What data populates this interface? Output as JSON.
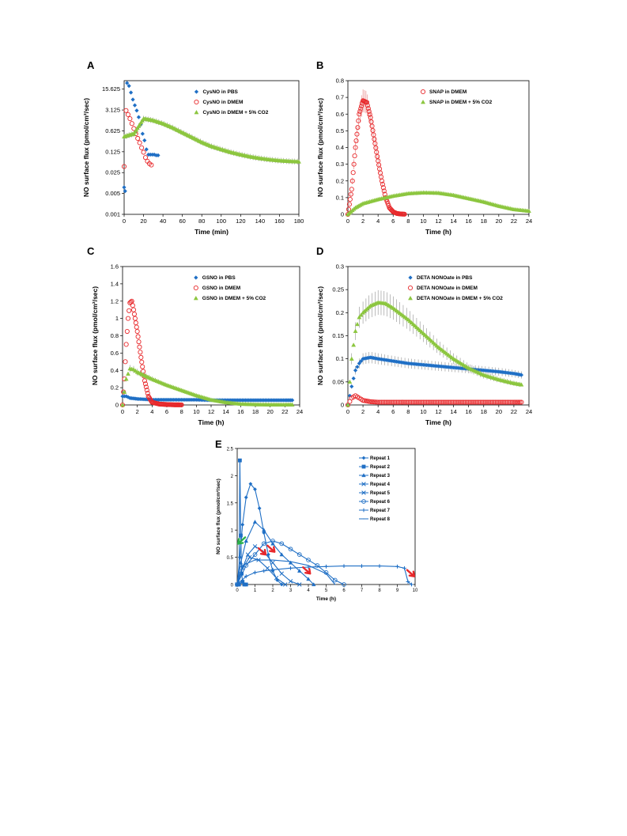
{
  "chart_data": [
    {
      "panel": "A",
      "type": "scatter",
      "xlabel": "Time (min)",
      "ylabel": "NO surface flux (pmol/cm²/sec)",
      "xlim": [
        0,
        180
      ],
      "ylim": [
        0.001,
        30
      ],
      "yscale": "log",
      "xticks": [
        0,
        20,
        40,
        60,
        80,
        100,
        120,
        140,
        160,
        180
      ],
      "yticks": [
        0.001,
        0.005,
        0.025,
        0.125,
        0.625,
        3.125,
        15.625
      ],
      "ytick_labels": [
        "0.001",
        "0.005",
        "0.025",
        "0.125",
        "0.625",
        "3.125",
        "15.625"
      ],
      "legend_position": "top-right",
      "series": [
        {
          "name": "CysNO in PBS",
          "color": "#1f6fc5",
          "marker": "diamond",
          "x": [
            0,
            1,
            3,
            5,
            7,
            9,
            11,
            13,
            15,
            17,
            19,
            21,
            23,
            25,
            27,
            29,
            31,
            33,
            35
          ],
          "y": [
            0.008,
            0.006,
            25,
            20,
            12,
            7,
            4.5,
            3,
            1.8,
            1,
            0.5,
            0.3,
            0.15,
            0.1,
            0.1,
            0.1,
            0.1,
            0.095,
            0.095
          ]
        },
        {
          "name": "CysNO in DMEM",
          "color": "#e8282b",
          "marker": "circle",
          "x": [
            0,
            2,
            4,
            6,
            8,
            10,
            12,
            14,
            16,
            18,
            20,
            22,
            24,
            26,
            28
          ],
          "y": [
            0.04,
            3.0,
            2.2,
            1.6,
            1.1,
            0.75,
            0.5,
            0.35,
            0.25,
            0.17,
            0.12,
            0.08,
            0.06,
            0.05,
            0.045
          ]
        },
        {
          "name": "CysNO in DMEM + 5% CO2",
          "color": "#8cc63f",
          "marker": "triangle",
          "x": [
            0,
            5,
            10,
            15,
            20,
            25,
            30,
            40,
            50,
            60,
            70,
            80,
            90,
            100,
            110,
            120,
            130,
            140,
            150,
            160,
            170,
            180
          ],
          "y": [
            0.4,
            0.45,
            0.5,
            0.9,
            1.6,
            1.5,
            1.4,
            1.1,
            0.8,
            0.55,
            0.38,
            0.26,
            0.19,
            0.15,
            0.12,
            0.1,
            0.085,
            0.075,
            0.068,
            0.063,
            0.06,
            0.058
          ]
        }
      ]
    },
    {
      "panel": "B",
      "type": "scatter",
      "xlabel": "Time (h)",
      "ylabel": "NO surface flux (pmol/cm²/sec)",
      "xlim": [
        0,
        24
      ],
      "ylim": [
        0,
        0.8
      ],
      "xticks": [
        0,
        2,
        4,
        6,
        8,
        10,
        12,
        14,
        16,
        18,
        20,
        22,
        24
      ],
      "yticks": [
        0,
        0.1,
        0.2,
        0.3,
        0.4,
        0.5,
        0.6,
        0.7,
        0.8
      ],
      "ytick_labels": [
        "0",
        "0.1",
        "0.2",
        "0.3",
        "0.4",
        "0.5",
        "0.6",
        "0.7",
        "0.8"
      ],
      "legend_position": "top-right",
      "series": [
        {
          "name": "SNAP in DMEM",
          "color": "#e8282b",
          "marker": "circle",
          "x": [
            0,
            0.5,
            1,
            1.5,
            2,
            2.5,
            3,
            3.5,
            4,
            4.5,
            5,
            5.5,
            6,
            6.5,
            7,
            7.5
          ],
          "y": [
            0,
            0.15,
            0.4,
            0.6,
            0.68,
            0.67,
            0.58,
            0.45,
            0.32,
            0.2,
            0.1,
            0.04,
            0.015,
            0.005,
            0.002,
            0.001
          ]
        },
        {
          "name": "SNAP in DMEM + 5% CO2",
          "color": "#8cc63f",
          "marker": "triangle",
          "x": [
            0,
            1,
            2,
            4,
            6,
            8,
            10,
            12,
            14,
            16,
            18,
            20,
            22,
            24
          ],
          "y": [
            0,
            0.04,
            0.065,
            0.09,
            0.11,
            0.125,
            0.13,
            0.128,
            0.115,
            0.095,
            0.075,
            0.05,
            0.03,
            0.02
          ]
        }
      ]
    },
    {
      "panel": "C",
      "type": "scatter",
      "xlabel": "Time (h)",
      "ylabel": "NO surface flux (pmol/cm²/sec)",
      "xlim": [
        0,
        24
      ],
      "ylim": [
        0,
        1.6
      ],
      "xticks": [
        0,
        2,
        4,
        6,
        8,
        10,
        12,
        14,
        16,
        18,
        20,
        22,
        24
      ],
      "yticks": [
        0,
        0.2,
        0.4,
        0.6,
        0.8,
        1,
        1.2,
        1.4,
        1.6
      ],
      "ytick_labels": [
        "0",
        "0.2",
        "0.4",
        "0.6",
        "0.8",
        "1",
        "1.2",
        "1.4",
        "1.6"
      ],
      "legend_position": "top-right",
      "series": [
        {
          "name": "GSNO in PBS",
          "color": "#1f6fc5",
          "marker": "diamond",
          "x": [
            0,
            0.5,
            1,
            2,
            4,
            6,
            8,
            10,
            12,
            14,
            16,
            18,
            20,
            22,
            23
          ],
          "y": [
            0.1,
            0.1,
            0.08,
            0.07,
            0.06,
            0.06,
            0.06,
            0.06,
            0.055,
            0.055,
            0.055,
            0.055,
            0.055,
            0.055,
            0.055
          ]
        },
        {
          "name": "GSNO in DMEM",
          "color": "#e8282b",
          "marker": "circle",
          "x": [
            0,
            0.25,
            0.5,
            0.75,
            1,
            1.25,
            1.5,
            2,
            2.5,
            3,
            3.5,
            4,
            5,
            6,
            7,
            8
          ],
          "y": [
            0,
            0.3,
            0.7,
            1.0,
            1.18,
            1.2,
            1.1,
            0.85,
            0.55,
            0.28,
            0.1,
            0.03,
            0.01,
            0.005,
            0.002,
            0.001
          ]
        },
        {
          "name": "GSNO in DMEM + 5% CO2",
          "color": "#8cc63f",
          "marker": "triangle",
          "x": [
            0,
            0.5,
            1,
            1.5,
            2,
            3,
            4,
            6,
            8,
            10,
            12,
            14,
            16,
            18,
            20,
            22,
            23
          ],
          "y": [
            0,
            0.3,
            0.42,
            0.41,
            0.38,
            0.34,
            0.3,
            0.23,
            0.17,
            0.11,
            0.06,
            0.03,
            0.012,
            0.006,
            0.004,
            0.003,
            0.003
          ]
        }
      ]
    },
    {
      "panel": "D",
      "type": "scatter",
      "xlabel": "Time (h)",
      "ylabel": "NO surface flux (pmol/cm²/sec)",
      "xlim": [
        0,
        24
      ],
      "ylim": [
        0,
        0.3
      ],
      "xticks": [
        0,
        2,
        4,
        6,
        8,
        10,
        12,
        14,
        16,
        18,
        20,
        22,
        24
      ],
      "yticks": [
        0,
        0.05,
        0.1,
        0.15,
        0.2,
        0.25,
        0.3
      ],
      "ytick_labels": [
        "0",
        "0.05",
        "0.1",
        "0.15",
        "0.2",
        "0.25",
        "0.3"
      ],
      "legend_position": "top-right",
      "series": [
        {
          "name": "DETA NONOate in PBS",
          "color": "#1f6fc5",
          "marker": "diamond",
          "x": [
            0,
            0.5,
            1,
            1.5,
            2,
            3,
            4,
            6,
            8,
            10,
            12,
            14,
            16,
            18,
            20,
            22,
            23
          ],
          "y": [
            0,
            0.04,
            0.075,
            0.09,
            0.1,
            0.103,
            0.1,
            0.095,
            0.09,
            0.087,
            0.084,
            0.081,
            0.078,
            0.075,
            0.072,
            0.068,
            0.065
          ]
        },
        {
          "name": "DETA NONOate in DMEM",
          "color": "#e8282b",
          "marker": "circle",
          "x": [
            0,
            0.5,
            1,
            1.5,
            2,
            3,
            4,
            6,
            8,
            10,
            12,
            14,
            16,
            18,
            20,
            22,
            23
          ],
          "y": [
            0,
            0.015,
            0.02,
            0.015,
            0.01,
            0.007,
            0.006,
            0.006,
            0.006,
            0.006,
            0.006,
            0.006,
            0.006,
            0.006,
            0.006,
            0.006,
            0.006
          ]
        },
        {
          "name": "DETA NONOate in DMEM + 5% CO2",
          "color": "#8cc63f",
          "marker": "triangle",
          "x": [
            0,
            0.5,
            1,
            1.5,
            2,
            3,
            4,
            5,
            6,
            8,
            10,
            12,
            14,
            16,
            18,
            20,
            22,
            23
          ],
          "y": [
            0,
            0.1,
            0.16,
            0.19,
            0.2,
            0.215,
            0.222,
            0.22,
            0.21,
            0.185,
            0.155,
            0.125,
            0.1,
            0.08,
            0.065,
            0.055,
            0.047,
            0.044
          ]
        }
      ]
    },
    {
      "panel": "E",
      "type": "line",
      "xlabel": "Time (h)",
      "ylabel": "NO surface flux (pmol/cm²/sec)",
      "xlim": [
        0,
        10
      ],
      "ylim": [
        0,
        2.5
      ],
      "xticks": [
        0,
        1,
        2,
        3,
        4,
        5,
        6,
        7,
        8,
        9,
        10
      ],
      "yticks": [
        0,
        0.5,
        1,
        1.5,
        2,
        2.5
      ],
      "ytick_labels": [
        "0",
        "0.5",
        "1",
        "1.5",
        "2",
        "2.5"
      ],
      "legend_position": "top-right",
      "series": [
        {
          "name": "Repeat 1",
          "marker": "diamond",
          "x": [
            0,
            0.15,
            0.3,
            0.5,
            0.75,
            1.0,
            1.25,
            1.5,
            1.75,
            2.0,
            2.25,
            2.5
          ],
          "y": [
            0,
            0.5,
            1.1,
            1.6,
            1.85,
            1.75,
            1.4,
            0.95,
            0.55,
            0.25,
            0.08,
            0
          ]
        },
        {
          "name": "Repeat 2",
          "marker": "square",
          "x": [
            0.1,
            0.15,
            0.2,
            0.25,
            0.3,
            0.4,
            0.5
          ],
          "y": [
            0,
            2.28,
            0.9,
            0.2,
            0.05,
            0,
            0
          ]
        },
        {
          "name": "Repeat 3",
          "marker": "triangle",
          "x": [
            0,
            0.2,
            0.5,
            1.0,
            1.5,
            2.0,
            2.5,
            3.0,
            3.5,
            4.0,
            4.3
          ],
          "y": [
            0,
            0.4,
            0.8,
            1.15,
            1.0,
            0.75,
            0.55,
            0.4,
            0.25,
            0.1,
            0
          ]
        },
        {
          "name": "Repeat 4",
          "marker": "x",
          "x": [
            0,
            0.3,
            0.6,
            1.0,
            1.5,
            2.0,
            2.5,
            3.0,
            3.5
          ],
          "y": [
            0,
            0.3,
            0.55,
            0.7,
            0.6,
            0.4,
            0.2,
            0.06,
            0
          ]
        },
        {
          "name": "Repeat 5",
          "marker": "x",
          "x": [
            0,
            0.3,
            0.7,
            1.2,
            1.7,
            2.2,
            2.7
          ],
          "y": [
            0,
            0.3,
            0.5,
            0.45,
            0.3,
            0.12,
            0
          ]
        },
        {
          "name": "Repeat 6",
          "marker": "circle",
          "x": [
            0,
            0.5,
            1.0,
            1.5,
            2.0,
            2.5,
            3.0,
            3.5,
            4.0,
            4.5,
            5.0,
            5.5,
            6.0
          ],
          "y": [
            0,
            0.35,
            0.55,
            0.75,
            0.8,
            0.75,
            0.65,
            0.55,
            0.45,
            0.35,
            0.22,
            0.08,
            0
          ]
        },
        {
          "name": "Repeat 7",
          "marker": "plus",
          "x": [
            0,
            0.5,
            1.0,
            1.5,
            2.0,
            3.0,
            4.0,
            5.0,
            6.0,
            7.0,
            8.0,
            9.0,
            9.4,
            9.6,
            9.8
          ],
          "y": [
            0,
            0.15,
            0.22,
            0.25,
            0.27,
            0.3,
            0.32,
            0.33,
            0.34,
            0.34,
            0.34,
            0.33,
            0.3,
            0.05,
            0
          ]
        },
        {
          "name": "Repeat 8",
          "marker": "none",
          "x": [
            0,
            0.3,
            1.0,
            2.0,
            3.0,
            4.0,
            5.0,
            5.5
          ],
          "y": [
            0,
            0.35,
            0.45,
            0.45,
            0.42,
            0.35,
            0.2,
            0
          ]
        }
      ],
      "arrows": [
        {
          "x": 0.05,
          "y": 0.75,
          "color": "#2bb04a"
        },
        {
          "x": 1.6,
          "y": 0.55,
          "color": "#e8282b"
        },
        {
          "x": 2.1,
          "y": 0.6,
          "color": "#e8282b"
        },
        {
          "x": 4.1,
          "y": 0.2,
          "color": "#e8282b"
        },
        {
          "x": 9.95,
          "y": 0.15,
          "color": "#e8282b"
        }
      ]
    }
  ]
}
